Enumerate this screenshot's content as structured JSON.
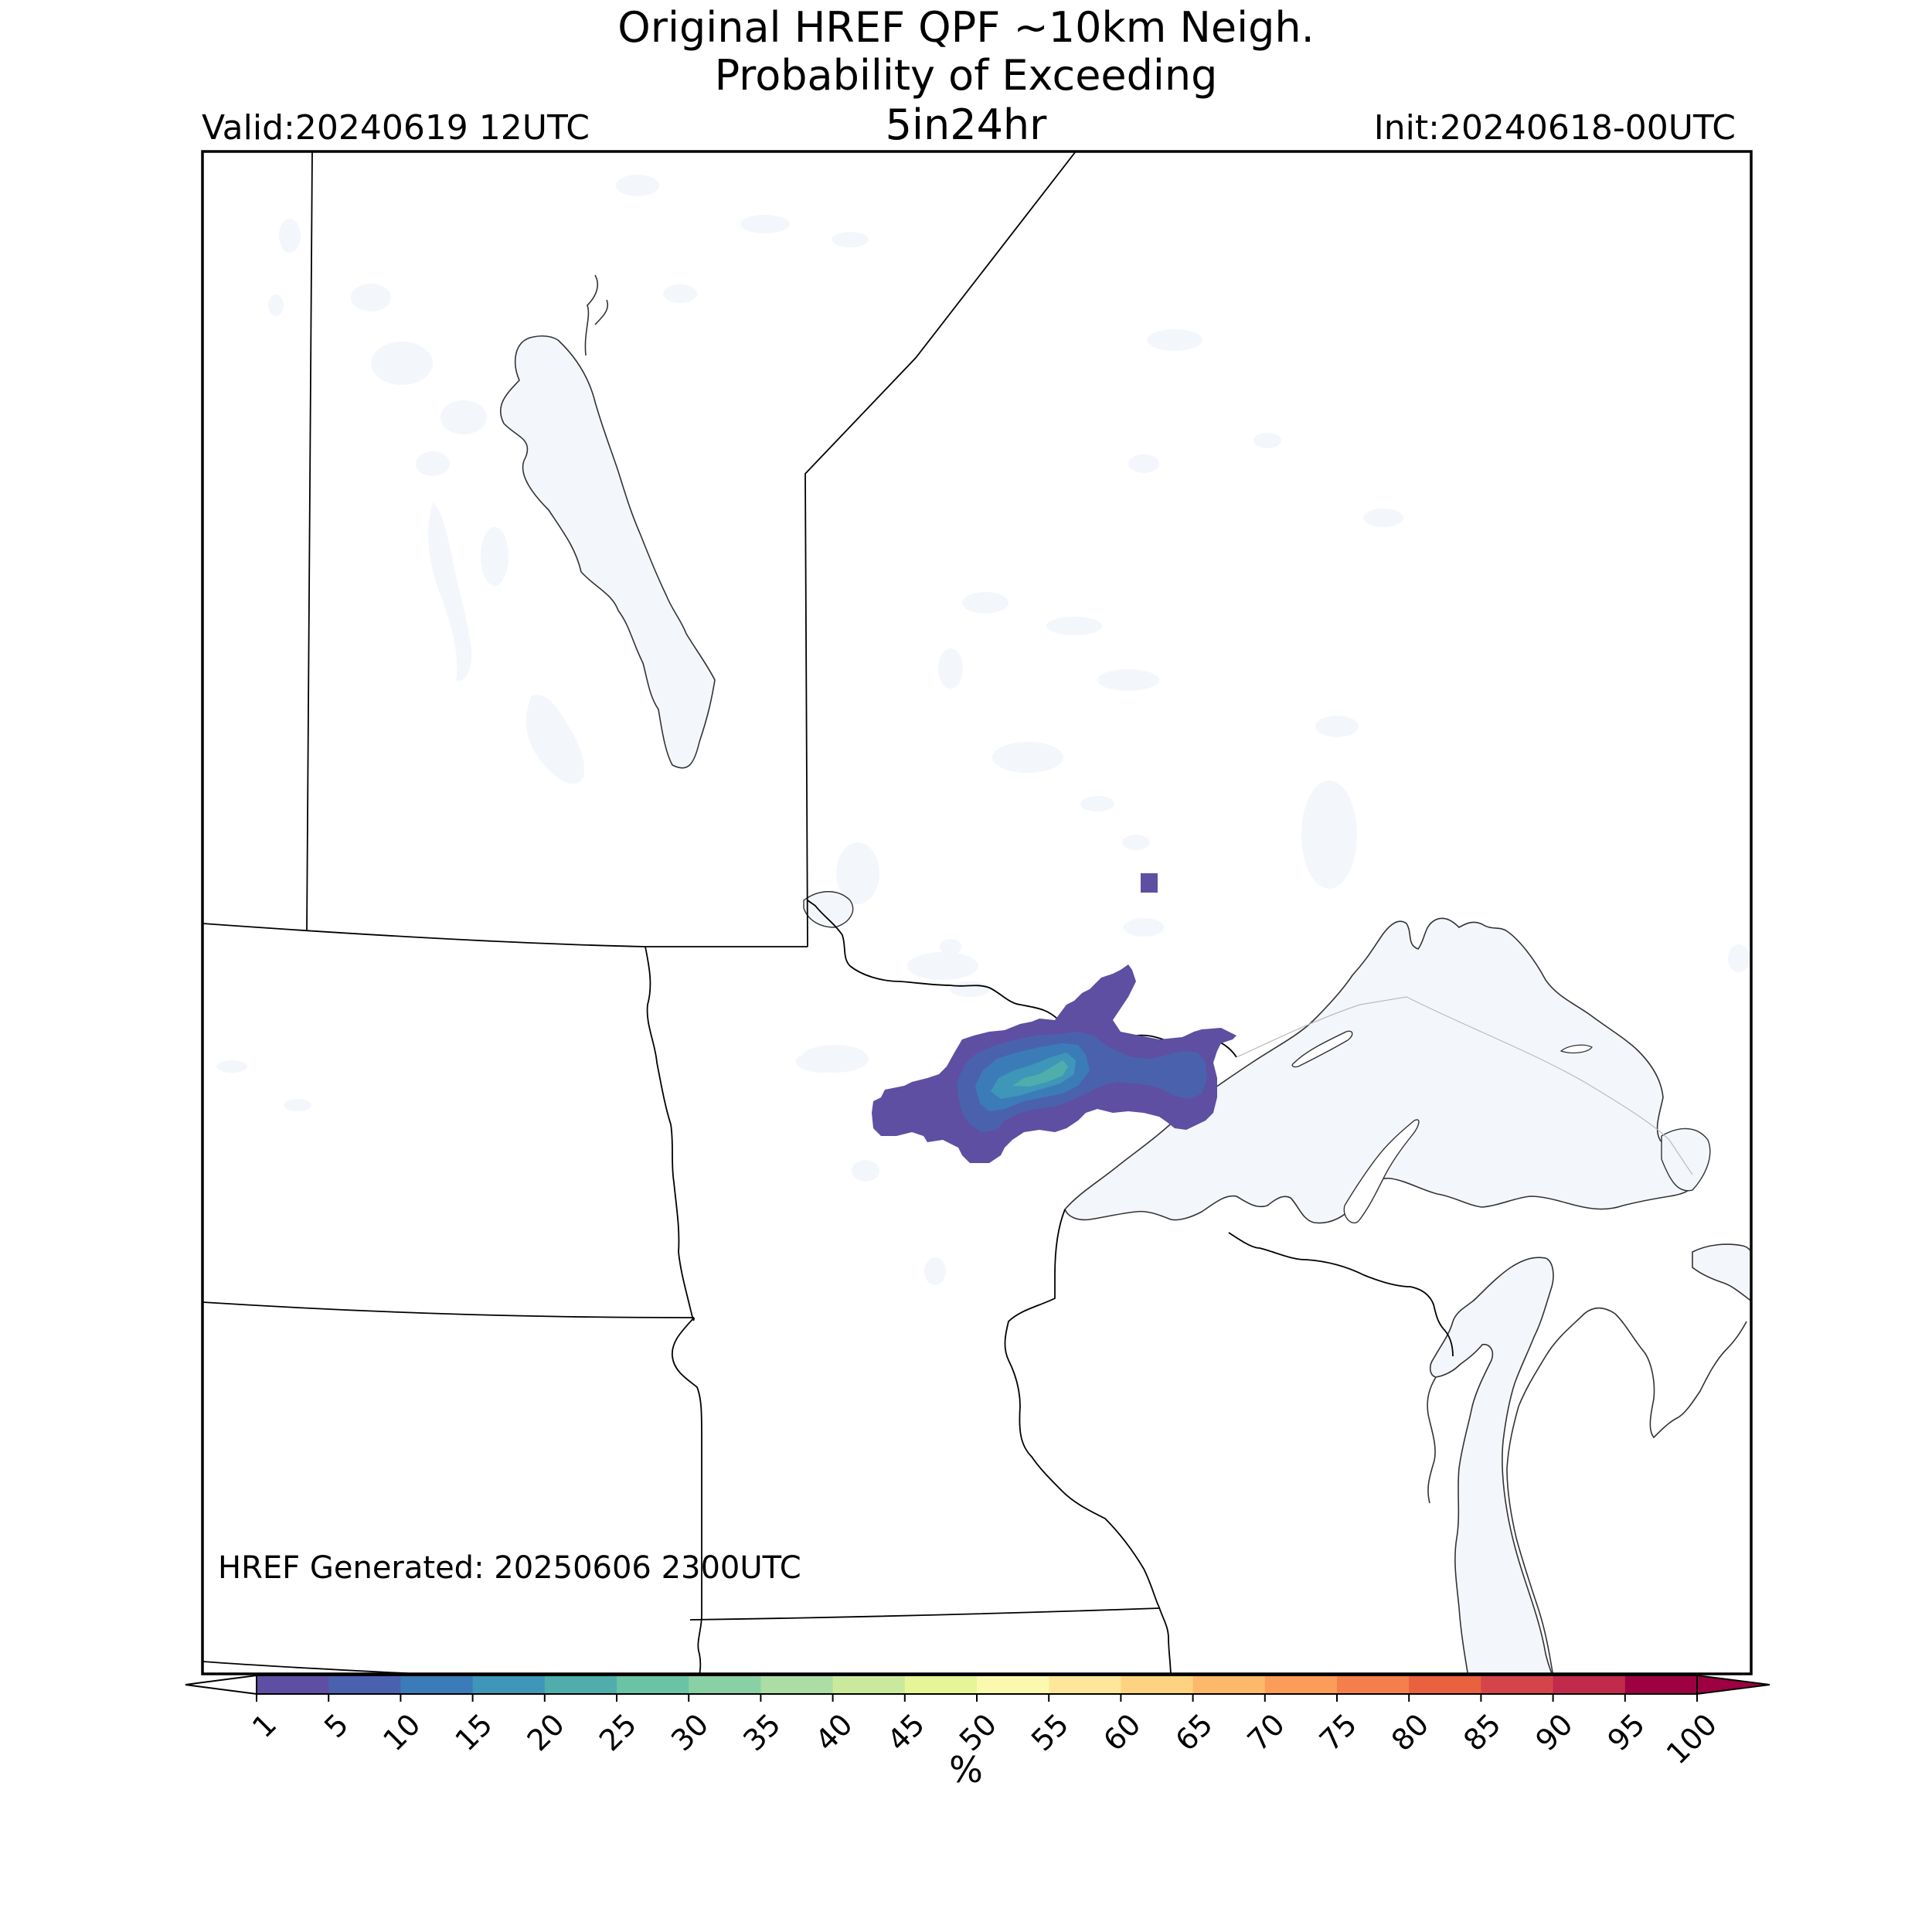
{
  "header": {
    "title_line1": "Original HREF QPF ~10km Neigh.",
    "title_line2": "Probability of Exceeding",
    "title_line3": "5in24hr",
    "valid": "Valid:20240619 12UTC",
    "init": "Init:20240618-00UTC"
  },
  "map": {
    "footer_text": "HREF Generated: 20250606 2300UTC",
    "region": "Upper Midwest / Great Lakes",
    "water_color": "#f3f6fb",
    "border_color": "#000000"
  },
  "colorbar": {
    "unit": "%",
    "ticks": [
      "1",
      "5",
      "10",
      "15",
      "20",
      "25",
      "30",
      "35",
      "40",
      "45",
      "50",
      "55",
      "60",
      "65",
      "70",
      "75",
      "80",
      "85",
      "90",
      "95",
      "100"
    ],
    "colors": [
      "#5e4fa2",
      "#4a62ad",
      "#3b7cb8",
      "#3e96b8",
      "#4faeac",
      "#69c3a4",
      "#89d1a4",
      "#abdda4",
      "#cbe99d",
      "#e6f598",
      "#fbf9b0",
      "#fee79a",
      "#fed280",
      "#fdb869",
      "#fb9c59",
      "#f57f4a",
      "#e9613f",
      "#d6444b",
      "#c12a4b",
      "#9e0142"
    ],
    "under_color": "#ffffff",
    "over_color": "#9e0142"
  },
  "probability_field": {
    "max_category": "20",
    "category_colors": {
      "1": "#5e4fa2",
      "5": "#4a62ad",
      "10": "#3b7cb8",
      "15": "#3e96b8",
      "20": "#4faeac"
    }
  }
}
